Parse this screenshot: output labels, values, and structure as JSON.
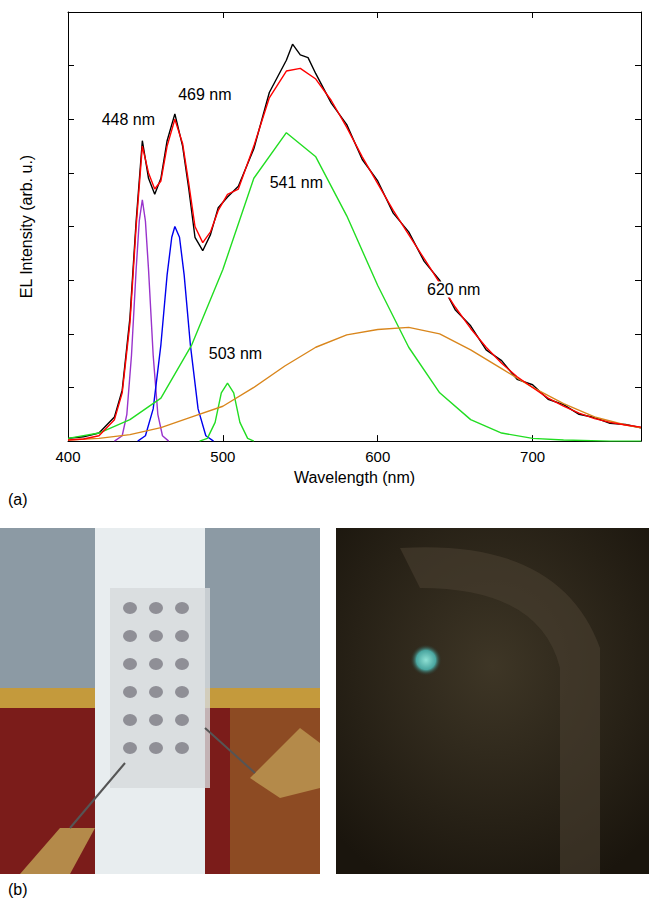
{
  "chart_data": {
    "type": "line",
    "x_label": "Wavelength (nm)",
    "y_label": "EL Intensity (arb. u.)",
    "xlim": [
      400,
      770
    ],
    "xticks": [
      400,
      500,
      600,
      700
    ],
    "ylim": [
      0,
      8
    ],
    "yticks": [
      0,
      1,
      2,
      3,
      4,
      5,
      6,
      7,
      8
    ],
    "tick_labels": "x",
    "grid": false,
    "series": [
      {
        "color": "#000000",
        "x": [
          400,
          410,
          420,
          430,
          435,
          440,
          444,
          448,
          452,
          456,
          460,
          464,
          469,
          474,
          478,
          482,
          487,
          492,
          497,
          503,
          510,
          520,
          530,
          541,
          545,
          550,
          555,
          560,
          570,
          580,
          590,
          600,
          610,
          620,
          630,
          640,
          650,
          660,
          670,
          680,
          690,
          700,
          710,
          720,
          730,
          740,
          750,
          760,
          770
        ],
        "values": [
          0.05,
          0.08,
          0.15,
          0.45,
          0.95,
          2.3,
          4.1,
          5.6,
          4.9,
          4.6,
          4.9,
          5.6,
          6.1,
          5.5,
          4.7,
          3.8,
          3.55,
          3.85,
          4.35,
          4.55,
          4.75,
          5.45,
          6.5,
          7.1,
          7.4,
          7.2,
          7.15,
          6.85,
          6.3,
          5.9,
          5.25,
          4.85,
          4.25,
          3.9,
          3.35,
          3.0,
          2.45,
          2.15,
          1.7,
          1.5,
          1.15,
          1.05,
          0.78,
          0.68,
          0.5,
          0.44,
          0.33,
          0.31,
          0.25
        ]
      },
      {
        "color": "#9933cc",
        "annotation": "448 nm",
        "x": [
          430,
          435,
          438,
          441,
          444,
          446,
          448,
          450,
          452,
          455,
          458,
          461,
          465
        ],
        "values": [
          0,
          0.1,
          0.5,
          1.6,
          3.2,
          4.1,
          4.5,
          4.1,
          3.2,
          1.6,
          0.5,
          0.1,
          0
        ]
      },
      {
        "color": "#0000ee",
        "annotation": "469 nm",
        "x": [
          445,
          450,
          455,
          460,
          464,
          467,
          469,
          472,
          475,
          479,
          484,
          489,
          494
        ],
        "values": [
          0,
          0.1,
          0.6,
          1.8,
          3.1,
          3.8,
          4.0,
          3.8,
          3.1,
          1.8,
          0.6,
          0.1,
          0
        ]
      },
      {
        "color": "#22dd22",
        "annotation": "541 nm",
        "x": [
          400,
          420,
          440,
          460,
          480,
          500,
          520,
          541,
          560,
          580,
          600,
          620,
          640,
          660,
          680,
          700,
          720,
          750,
          770
        ],
        "values": [
          0.05,
          0.15,
          0.4,
          0.8,
          1.8,
          3.2,
          4.9,
          5.75,
          5.3,
          4.2,
          2.9,
          1.75,
          0.9,
          0.4,
          0.15,
          0.05,
          0.02,
          0,
          0
        ]
      },
      {
        "color": "#22dd22",
        "annotation": "503 nm",
        "x": [
          485,
          490,
          495,
          499,
          503,
          507,
          511,
          516,
          520
        ],
        "values": [
          0,
          0.05,
          0.35,
          0.9,
          1.08,
          0.9,
          0.35,
          0.05,
          0
        ]
      },
      {
        "color": "#d9861c",
        "annotation": "620 nm",
        "x": [
          400,
          420,
          440,
          460,
          480,
          500,
          520,
          540,
          560,
          580,
          600,
          620,
          640,
          660,
          680,
          700,
          720,
          740,
          760,
          770
        ],
        "values": [
          0.02,
          0.05,
          0.12,
          0.25,
          0.45,
          0.65,
          1.0,
          1.4,
          1.75,
          1.98,
          2.08,
          2.12,
          2.0,
          1.7,
          1.35,
          1.0,
          0.7,
          0.45,
          0.3,
          0.25
        ]
      },
      {
        "color": "#ff0000",
        "x": [
          400,
          410,
          420,
          430,
          435,
          440,
          444,
          448,
          452,
          456,
          460,
          464,
          469,
          474,
          478,
          482,
          487,
          492,
          497,
          503,
          510,
          520,
          530,
          541,
          550,
          560,
          570,
          580,
          590,
          600,
          610,
          620,
          630,
          640,
          650,
          660,
          670,
          680,
          690,
          700,
          710,
          720,
          730,
          740,
          750,
          760,
          770
        ],
        "values": [
          0.02,
          0.04,
          0.1,
          0.4,
          0.9,
          2.2,
          4.0,
          5.5,
          5.0,
          4.7,
          4.85,
          5.5,
          6.0,
          5.55,
          4.8,
          4.0,
          3.7,
          3.9,
          4.3,
          4.6,
          4.7,
          5.5,
          6.4,
          6.9,
          6.95,
          6.75,
          6.35,
          5.85,
          5.3,
          4.8,
          4.3,
          3.85,
          3.4,
          2.95,
          2.5,
          2.1,
          1.75,
          1.45,
          1.2,
          1.0,
          0.8,
          0.65,
          0.52,
          0.42,
          0.35,
          0.3,
          0.26
        ]
      }
    ]
  },
  "panel_labels": [
    "(a)",
    "(b)"
  ]
}
